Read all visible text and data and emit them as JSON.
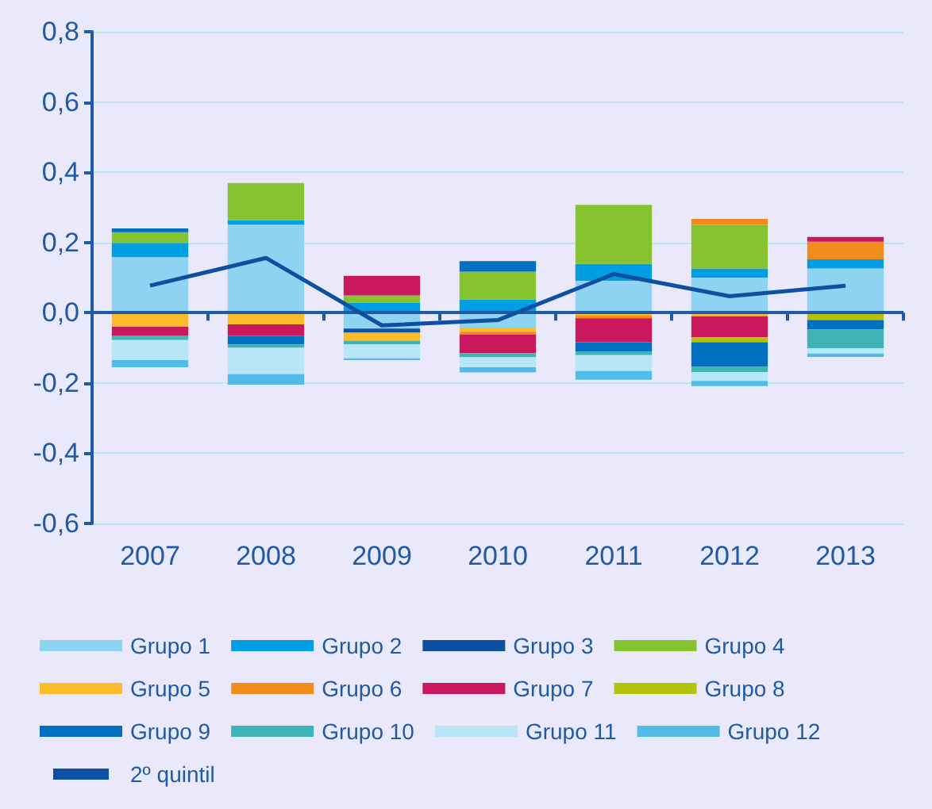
{
  "chart_data": {
    "type": "bar",
    "stacked": true,
    "categories": [
      "2007",
      "2008",
      "2009",
      "2010",
      "2011",
      "2012",
      "2013"
    ],
    "series": [
      {
        "name": "Grupo 1",
        "color": "#8fd3f3",
        "values": [
          0.158,
          0.251,
          -0.045,
          -0.042,
          0.091,
          0.1,
          0.126
        ]
      },
      {
        "name": "Grupo 2",
        "color": "#009fe3",
        "values": [
          0.041,
          0.012,
          0.029,
          0.038,
          0.048,
          0.026,
          0.026
        ]
      },
      {
        "name": "Grupo 3",
        "color": "#0d4fa0",
        "values": [
          null,
          null,
          -0.012,
          null,
          null,
          null,
          null
        ]
      },
      {
        "name": "Grupo 4",
        "color": "#86c42f",
        "values": [
          0.03,
          0.106,
          0.02,
          0.079,
          0.168,
          0.124,
          null
        ]
      },
      {
        "name": "Grupo 5",
        "color": "#fbbb2a",
        "values": [
          -0.04,
          -0.033,
          -0.023,
          -0.012,
          -0.008,
          -0.01,
          null
        ]
      },
      {
        "name": "Grupo 6",
        "color": "#f28b1e",
        "values": [
          null,
          null,
          null,
          -0.008,
          -0.008,
          0.017,
          0.05
        ]
      },
      {
        "name": "Grupo 7",
        "color": "#c9195c",
        "values": [
          -0.025,
          -0.033,
          0.056,
          -0.053,
          -0.068,
          -0.06,
          0.014
        ]
      },
      {
        "name": "Grupo 8",
        "color": "#b5c20a",
        "values": [
          null,
          null,
          null,
          null,
          null,
          -0.014,
          -0.021
        ]
      },
      {
        "name": "Grupo 9",
        "color": "#0070c0",
        "values": [
          0.011,
          -0.024,
          null,
          0.03,
          -0.027,
          -0.07,
          -0.027
        ]
      },
      {
        "name": "Grupo 10",
        "color": "#3fb3b5",
        "values": [
          -0.013,
          -0.01,
          -0.01,
          -0.012,
          -0.01,
          -0.015,
          -0.053
        ]
      },
      {
        "name": "Grupo 11",
        "color": "#b8e6f7",
        "values": [
          -0.057,
          -0.075,
          -0.04,
          -0.028,
          -0.045,
          -0.025,
          -0.015
        ]
      },
      {
        "name": "Grupo 12",
        "color": "#52bce9",
        "values": [
          -0.02,
          -0.03,
          -0.005,
          -0.015,
          -0.025,
          -0.015,
          -0.01
        ]
      },
      {
        "name": "2º quintil",
        "type": "line",
        "color": "#0d4fa0",
        "marker": "none",
        "values": [
          0.077,
          0.156,
          -0.036,
          -0.021,
          0.11,
          0.047,
          0.077
        ]
      }
    ],
    "ylim": [
      -0.6,
      0.8
    ],
    "yticks": [
      {
        "value": -0.6,
        "label": "-0,6"
      },
      {
        "value": -0.4,
        "label": "-0,4"
      },
      {
        "value": -0.2,
        "label": "-0,2"
      },
      {
        "value": 0,
        "label": "0,0"
      },
      {
        "value": 0.2,
        "label": "0,2"
      },
      {
        "value": 0.4,
        "label": "0,4"
      },
      {
        "value": 0.6,
        "label": "0,6"
      },
      {
        "value": 0.8,
        "label": "0,8"
      }
    ],
    "ref_lines": [
      {
        "axis": "y",
        "value": 0,
        "color": "#1f5aa6"
      }
    ],
    "grid": "y",
    "legend": "bottom"
  }
}
